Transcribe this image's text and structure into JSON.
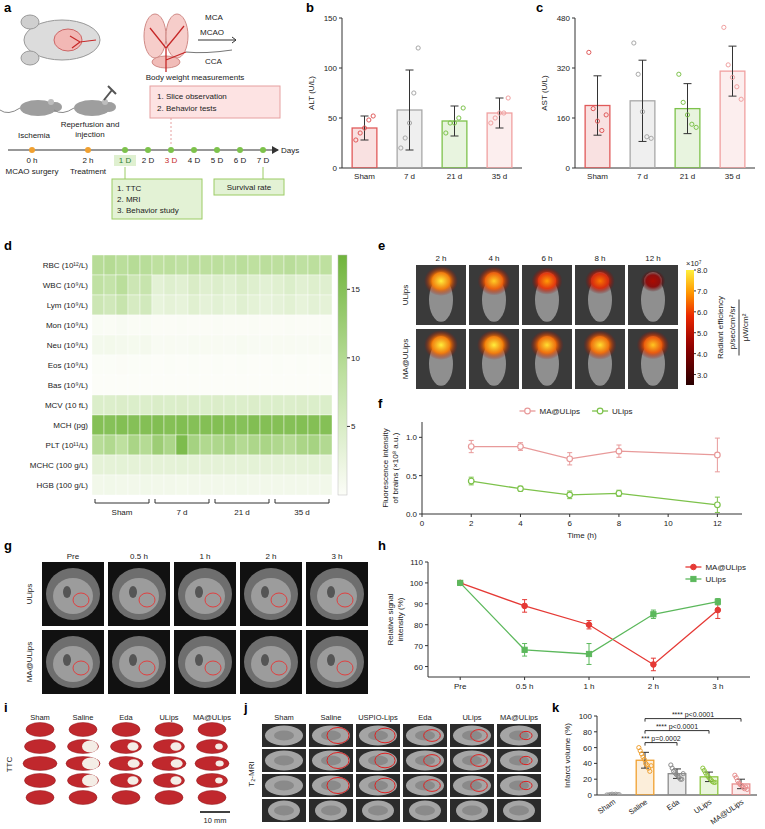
{
  "schematic": {
    "panel": "a",
    "labels": {
      "mca": "MCA",
      "mcao": "MCAO",
      "cca": "CCA"
    },
    "events": [
      {
        "title": "Ischemia",
        "time": "0 h",
        "sub": "MCAO surgery"
      },
      {
        "title": "Reperfusion and injection",
        "time": "2 h",
        "sub": "Treatment"
      }
    ],
    "days": [
      "1 D",
      "2 D",
      "3 D",
      "4 D",
      "5 D",
      "6 D",
      "7 D"
    ],
    "axis_label": "Days",
    "top_label": "Body weight measurements",
    "top_tasks": [
      "1. Slice observation",
      "2. Behavior tests"
    ],
    "day1_tasks": [
      "1. TTC",
      "2. MRI",
      "3. Behavior study"
    ],
    "end_label": "Survival rate"
  },
  "chart_data": [
    {
      "panel": "b",
      "type": "bar",
      "y_label": "ALT (U/L)",
      "categories": [
        "Sham",
        "7 d",
        "21 d",
        "35 d"
      ],
      "values": [
        40,
        58,
        47,
        55
      ],
      "errors": [
        12,
        40,
        15,
        15
      ],
      "points": [
        [
          28,
          35,
          40,
          48,
          52
        ],
        [
          20,
          30,
          45,
          75,
          120
        ],
        [
          35,
          45,
          45,
          50,
          60
        ],
        [
          45,
          50,
          55,
          55,
          70
        ]
      ],
      "colors": [
        "#e05a5a",
        "#a8a8a8",
        "#7dc24b",
        "#f0a0a0"
      ],
      "ylim": [
        0,
        150
      ],
      "yticks": [
        0,
        50,
        100,
        150
      ]
    },
    {
      "panel": "c",
      "type": "bar",
      "y_label": "AST (U/L)",
      "categories": [
        "Sham",
        "7 d",
        "21 d",
        "35 d"
      ],
      "values": [
        200,
        215,
        190,
        310
      ],
      "errors": [
        95,
        130,
        80,
        80
      ],
      "points": [
        [
          370,
          190,
          150,
          120,
          170
        ],
        [
          400,
          300,
          180,
          100,
          95
        ],
        [
          300,
          210,
          170,
          140,
          130
        ],
        [
          450,
          330,
          290,
          260,
          220
        ]
      ],
      "colors": [
        "#e05a5a",
        "#a8a8a8",
        "#7dc24b",
        "#f0a0a0"
      ],
      "ylim": [
        0,
        480
      ],
      "yticks": [
        0,
        160,
        320,
        480
      ]
    },
    {
      "panel": "d",
      "type": "heatmap",
      "rows": [
        "RBC (10¹²/L)",
        "WBC (10⁹/L)",
        "Lym (10⁹/L)",
        "Mon (10⁹/L)",
        "Neu (10⁹/L)",
        "Eos (10⁹/L)",
        "Bas (10⁹/L)",
        "MCV (10 fL)",
        "MCH (pg)",
        "PLT (10¹¹/L)",
        "MCHC (100 g/L)",
        "HGB (100 g/L)"
      ],
      "column_groups": [
        "Sham",
        "7 d",
        "21 d",
        "35 d"
      ],
      "cells": [
        [
          9.5,
          9.8,
          9.2,
          9.6,
          9.4,
          8.8,
          9.0,
          8.6,
          9.1,
          8.9,
          9.0,
          8.7,
          9.2,
          8.8,
          9.1,
          8.9,
          9.3,
          8.7,
          9.0,
          8.8
        ],
        [
          8.5,
          7.9,
          9.2,
          6.8,
          7.5,
          3.5,
          4.2,
          3.8,
          5.0,
          4.1,
          4.5,
          3.9,
          4.8,
          4.2,
          3.6,
          4.0,
          4.6,
          3.8,
          4.3,
          4.1
        ],
        [
          6.8,
          6.2,
          7.5,
          5.4,
          6.0,
          2.8,
          3.3,
          3.0,
          4.0,
          3.2,
          3.6,
          3.1,
          3.9,
          3.4,
          2.9,
          3.2,
          3.7,
          3.0,
          3.5,
          3.3
        ],
        [
          0.4,
          0.3,
          0.5,
          0.3,
          0.4,
          0.2,
          0.2,
          0.3,
          0.2,
          0.2,
          0.3,
          0.2,
          0.2,
          0.3,
          0.2,
          0.2,
          0.3,
          0.2,
          0.2,
          0.3
        ],
        [
          1.2,
          1.3,
          1.1,
          1.0,
          1.1,
          0.5,
          0.6,
          0.5,
          0.7,
          0.6,
          0.6,
          0.5,
          0.7,
          0.5,
          0.5,
          0.6,
          0.6,
          0.5,
          0.6,
          0.5
        ],
        [
          0.1,
          0.1,
          0.2,
          0.1,
          0.1,
          0,
          0.1,
          0,
          0.1,
          0,
          0.1,
          0,
          0.1,
          0,
          0,
          0.1,
          0,
          0.1,
          0,
          0.1
        ],
        [
          0,
          0,
          0,
          0,
          0,
          0,
          0,
          0,
          0,
          0,
          0,
          0,
          0,
          0,
          0,
          0,
          0,
          0,
          0,
          0
        ],
        [
          4.6,
          4.5,
          4.7,
          4.6,
          4.5,
          4.8,
          4.6,
          4.7,
          4.5,
          4.6,
          4.7,
          4.6,
          4.5,
          4.7,
          4.6,
          4.6,
          4.5,
          4.7,
          4.6,
          4.6
        ],
        [
          15.2,
          15.0,
          15.4,
          15.1,
          15.3,
          15.5,
          15.2,
          15.6,
          15.1,
          15.3,
          15.4,
          15.2,
          15.0,
          15.5,
          15.3,
          15.2,
          15.1,
          15.4,
          15.3,
          15.2
        ],
        [
          9.5,
          10.2,
          8.8,
          11.0,
          9.8,
          12.5,
          10.8,
          16.0,
          11.5,
          10.2,
          10.5,
          11.2,
          9.9,
          10.7,
          11.0,
          10.3,
          9.7,
          10.9,
          11.4,
          10.1
        ],
        [
          3.3,
          3.3,
          3.4,
          3.3,
          3.3,
          3.3,
          3.3,
          3.4,
          3.3,
          3.3,
          3.3,
          3.3,
          3.3,
          3.4,
          3.3,
          3.3,
          3.3,
          3.3,
          3.4,
          3.3
        ],
        [
          1.4,
          1.5,
          1.4,
          1.4,
          1.5,
          1.4,
          1.4,
          1.3,
          1.4,
          1.4,
          1.4,
          1.4,
          1.5,
          1.4,
          1.4,
          1.4,
          1.4,
          1.4,
          1.4,
          1.4
        ]
      ],
      "color_range": [
        0,
        17.5
      ],
      "color_ticks": [
        5,
        10,
        15
      ]
    },
    {
      "panel": "f",
      "type": "line",
      "x_label": "Time (h)",
      "y_label": "Fluorescence intensity of brains (×10⁸ a.u.)",
      "x": [
        2,
        4,
        6,
        8,
        12
      ],
      "series": [
        {
          "name": "MA@ULips",
          "color": "#e89a9a",
          "marker": "open-circle",
          "values": [
            0.88,
            0.88,
            0.72,
            0.82,
            0.77
          ],
          "errors": [
            0.08,
            0.05,
            0.08,
            0.08,
            0.22
          ]
        },
        {
          "name": "ULips",
          "color": "#7dc24b",
          "marker": "open-circle",
          "values": [
            0.43,
            0.33,
            0.25,
            0.27,
            0.12
          ],
          "errors": [
            0.05,
            0.03,
            0.05,
            0.04,
            0.1
          ]
        }
      ],
      "xlim": [
        0,
        13
      ],
      "xticks": [
        0,
        2,
        4,
        6,
        8,
        10,
        12
      ],
      "ylim": [
        0,
        1.2
      ],
      "yticks": [
        {
          "value": 0,
          "label": "0.0"
        },
        {
          "value": 0.5,
          "label": "0.5"
        },
        {
          "value": 1,
          "label": "1.0"
        }
      ],
      "legend": "top"
    },
    {
      "panel": "h",
      "type": "line",
      "y_label": "Relative signal intensity (%)",
      "categories": [
        "Pre",
        "0.5 h",
        "1 h",
        "2 h",
        "3 h"
      ],
      "series": [
        {
          "name": "MA@ULips",
          "color": "#e53935",
          "marker": "circle",
          "values": [
            100,
            89,
            80,
            61,
            87
          ],
          "errors": [
            0,
            3,
            2,
            3,
            4
          ]
        },
        {
          "name": "ULips",
          "color": "#5cb85c",
          "marker": "square",
          "values": [
            100,
            68,
            66,
            85,
            91
          ],
          "errors": [
            0,
            3,
            5,
            2,
            1.5
          ]
        }
      ],
      "ylim": [
        55,
        110
      ],
      "yticks": [
        60,
        70,
        80,
        90,
        100,
        110
      ],
      "legend": "top-right"
    },
    {
      "panel": "k",
      "type": "bar",
      "y_label": "Infarct volume (%)",
      "categories": [
        "Sham",
        "Saline",
        "Eda",
        "ULips",
        "MA@ULips"
      ],
      "values": [
        0.5,
        44,
        27,
        23,
        14
      ],
      "errors": [
        0.5,
        10,
        6,
        6,
        6
      ],
      "points": [
        [
          0,
          0,
          0.5,
          1,
          0.5,
          1,
          0.5,
          0.5
        ],
        [
          60,
          56,
          52,
          48,
          45,
          40,
          38,
          34,
          30,
          37
        ],
        [
          38,
          34,
          30,
          28,
          26,
          25,
          22,
          20,
          20,
          27
        ],
        [
          34,
          31,
          28,
          25,
          23,
          21,
          19,
          17,
          16,
          16
        ],
        [
          25,
          22,
          18,
          15,
          13,
          12,
          10,
          8,
          10,
          7
        ]
      ],
      "colors": [
        "#9e9e9e",
        "#f0a030",
        "#8c8c8c",
        "#8cc63f",
        "#e88f8f"
      ],
      "ylim": [
        0,
        100
      ],
      "yticks": [
        0,
        20,
        40,
        60,
        80,
        100
      ],
      "annotations": [
        {
          "between": [
            "Saline",
            "Eda"
          ],
          "label": "*** p=0.0002"
        },
        {
          "between": [
            "Saline",
            "ULips"
          ],
          "label": "**** p<0.0001"
        },
        {
          "between": [
            "Saline",
            "MA@ULips"
          ],
          "label": "**** p<0.0001"
        }
      ]
    }
  ],
  "imaging": [
    {
      "panel": "e",
      "columns": [
        "2 h",
        "4 h",
        "6 h",
        "8 h",
        "12 h"
      ],
      "rows": [
        "ULips",
        "MA@ULips"
      ],
      "signal": [
        [
          8.0,
          7.6,
          7.0,
          6.6,
          4.8
        ],
        [
          8.0,
          8.0,
          7.8,
          7.8,
          7.5
        ]
      ],
      "colorbar": {
        "range": [
          2.5,
          8.0
        ],
        "ticks": [
          {
            "value": 3,
            "label": "3.0"
          },
          {
            "value": 4,
            "label": "4.0"
          },
          {
            "value": 5,
            "label": "5.0"
          },
          {
            "value": 6,
            "label": "6.0"
          },
          {
            "value": 7,
            "label": "7.0"
          },
          {
            "value": 8,
            "label": "8.0"
          }
        ],
        "multiplier": "×10⁷",
        "title": "Radiant efficiency",
        "unit_numerator": "p/sec/cm²/sr",
        "unit_denominator": "μW/cm²"
      }
    },
    {
      "panel": "g",
      "columns": [
        "Pre",
        "0.5 h",
        "1 h",
        "2 h",
        "3 h"
      ],
      "rows": [
        "ULips",
        "MA@ULips"
      ]
    },
    {
      "panel": "i",
      "columns": [
        "Sham",
        "Saline",
        "Eda",
        "ULips",
        "MA@ULips"
      ],
      "row_label": "TTC",
      "scale_bar": "10 mm"
    },
    {
      "panel": "j",
      "columns": [
        "Sham",
        "Saline",
        "USPIO-Lips",
        "Eda",
        "ULips",
        "MA@ULips"
      ],
      "row_label": "T₂-MRI"
    }
  ]
}
